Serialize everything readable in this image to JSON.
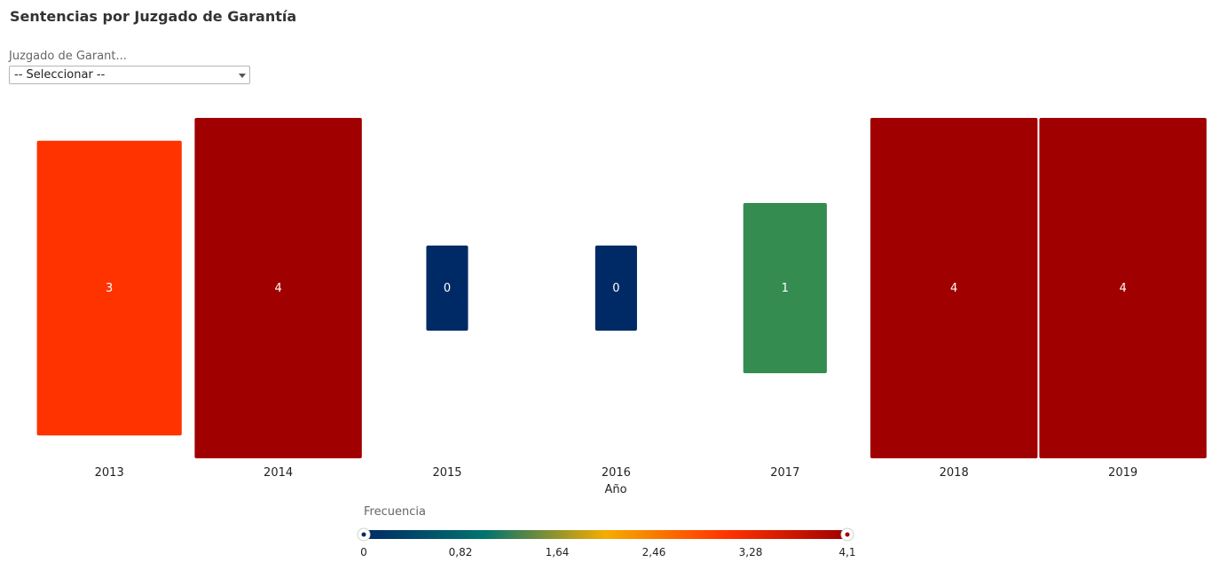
{
  "title": "Sentencias por Juzgado de Garantía",
  "filter": {
    "label": "Juzgado de Garant...",
    "selected": "-- Seleccionar --"
  },
  "chart_data": {
    "type": "heatmap",
    "xlabel": "Año",
    "categories": [
      "2013",
      "2014",
      "2015",
      "2016",
      "2017",
      "2018",
      "2019"
    ],
    "values": [
      3,
      4,
      0,
      0,
      1,
      4,
      4
    ],
    "labels": [
      "3",
      "4",
      "0",
      "0",
      "1",
      "4",
      "4"
    ],
    "colors": [
      "#ff3300",
      "#a00000",
      "#002a66",
      "#002a66",
      "#358c51",
      "#a00000",
      "#a00000"
    ],
    "legend": {
      "title": "Frecuencia",
      "min": 0,
      "max": 4.1,
      "ticks": [
        "0",
        "0,82",
        "1,64",
        "2,46",
        "3,28",
        "4,1"
      ],
      "colors": [
        "#002a66",
        "#00736e",
        "#f5ac00",
        "#ff3300",
        "#a00000"
      ]
    }
  }
}
